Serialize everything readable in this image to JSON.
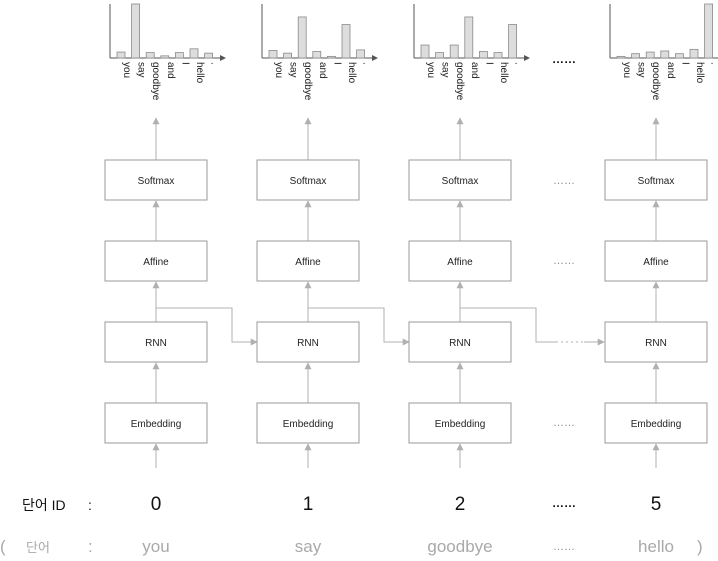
{
  "layers": {
    "softmax": "Softmax",
    "affine": "Affine",
    "rnn": "RNN",
    "embedding": "Embedding"
  },
  "vocab": [
    "you",
    "say",
    "goodbye",
    "and",
    "I",
    "hello",
    "."
  ],
  "timesteps": [
    {
      "id": "0",
      "word": "you",
      "probs": [
        0.11,
        1.0,
        0.1,
        0.04,
        0.1,
        0.17,
        0.09
      ]
    },
    {
      "id": "1",
      "word": "say",
      "probs": [
        0.14,
        0.09,
        0.76,
        0.12,
        0.03,
        0.62,
        0.15
      ]
    },
    {
      "id": "2",
      "word": "goodbye",
      "probs": [
        0.24,
        0.1,
        0.24,
        0.76,
        0.12,
        0.1,
        0.62
      ]
    },
    {
      "id": "5",
      "word": "hello",
      "probs": [
        0.03,
        0.08,
        0.11,
        0.13,
        0.08,
        0.16,
        1.0
      ]
    }
  ],
  "labels": {
    "id_row": "단어 ID",
    "id_colon": ":",
    "word_row": "단어",
    "word_colon": ":",
    "open_paren": "(",
    "close_paren": ")",
    "ellipsis": "……"
  },
  "colors": {
    "bar_fill": "#dddddd",
    "bar_stroke": "#8a8a8a",
    "arrow": "#b0b0b0",
    "word_gray": "#a9a9a9"
  }
}
